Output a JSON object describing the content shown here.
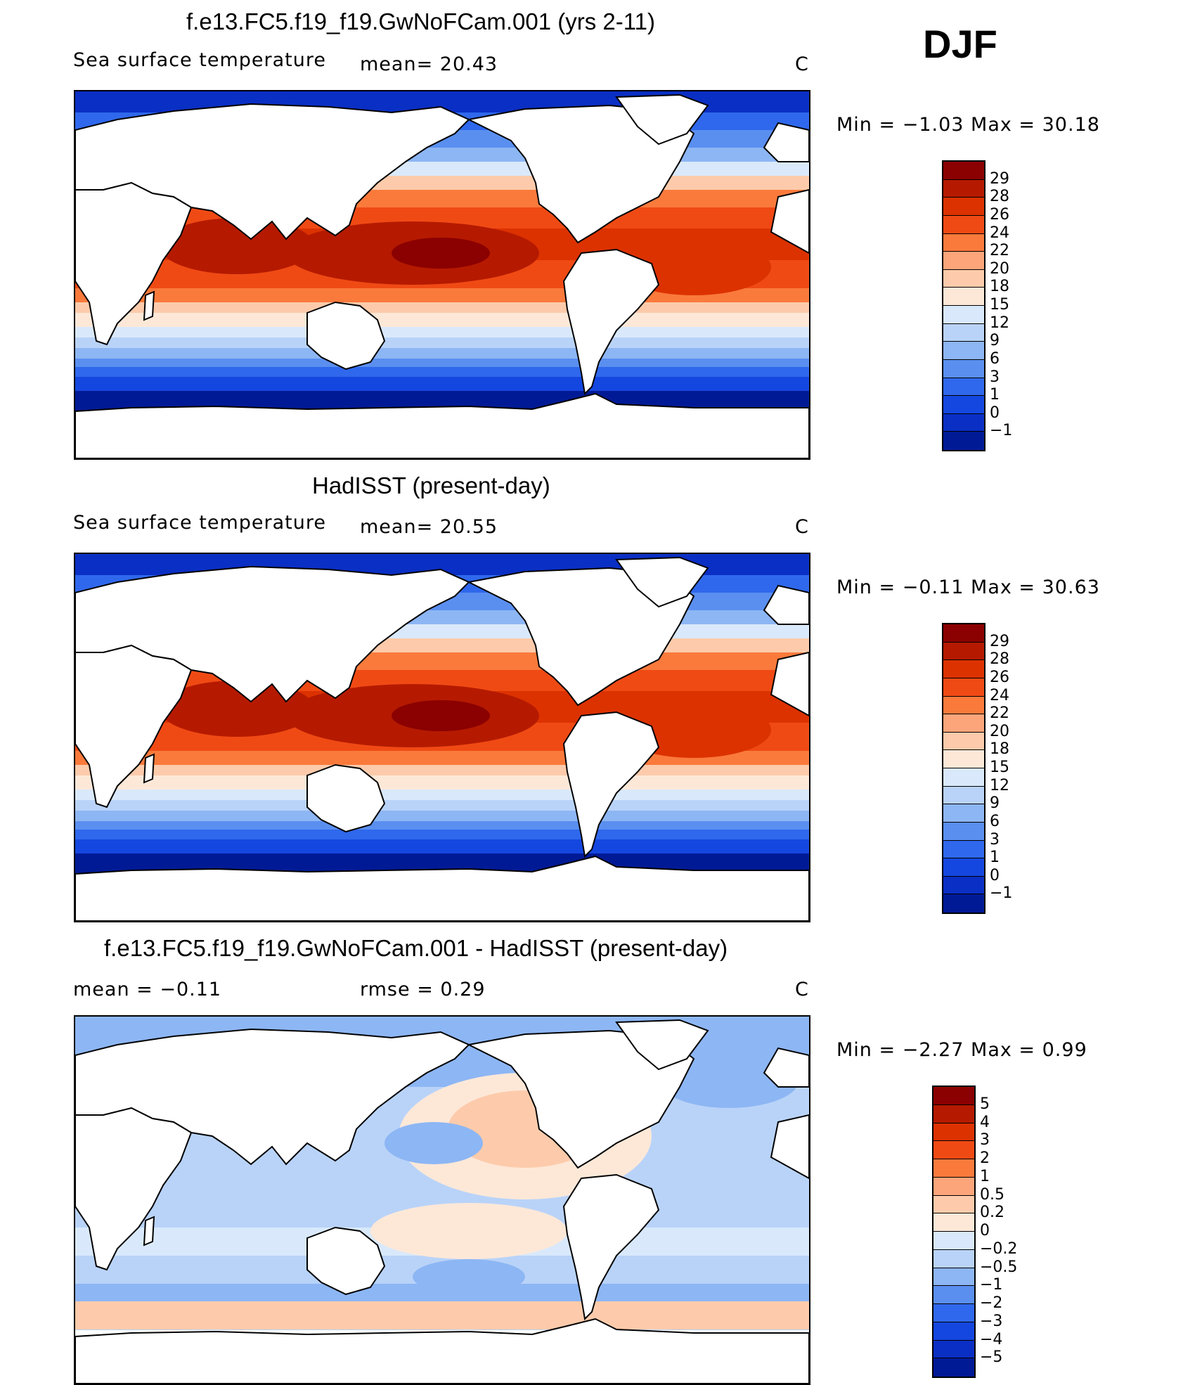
{
  "season": "DJF",
  "panels": [
    {
      "title": "f.e13.FC5.f19_f19.GwNoFCam.001 (yrs 2-11)",
      "left_label": "Sea surface temperature",
      "stat1": "mean=   20.43",
      "stat2": "",
      "units": "C",
      "minmax": "Min =   −1.03 Max =   30.18",
      "kind": "abs"
    },
    {
      "title": "HadISST (present-day)",
      "left_label": "Sea surface temperature",
      "stat1": "mean=   20.55",
      "stat2": "",
      "units": "C",
      "minmax": "Min =   −0.11 Max =   30.63",
      "kind": "abs2"
    },
    {
      "title": "f.e13.FC5.f19_f19.GwNoFCam.001 - HadISST (present-day)",
      "left_label": "mean =   −0.11",
      "stat1": "rmse =    0.29",
      "stat2": "",
      "units": "C",
      "minmax": "Min =   −2.27 Max =     0.99",
      "kind": "diff"
    }
  ],
  "colorbars": {
    "abs": {
      "labels": [
        "29",
        "28",
        "26",
        "24",
        "22",
        "20",
        "18",
        "15",
        "12",
        "9",
        "6",
        "3",
        "1",
        "0",
        "−1"
      ],
      "colors": [
        "#8b0000",
        "#b51a00",
        "#dc3200",
        "#f04a14",
        "#fa7a3c",
        "#fca57a",
        "#fdcbab",
        "#fde8d8",
        "#d9e9fb",
        "#b9d3f8",
        "#8db6f4",
        "#5a8ff0",
        "#2f68ec",
        "#1447e0",
        "#0a2fc4",
        "#001a96"
      ]
    },
    "diff": {
      "labels": [
        "5",
        "4",
        "3",
        "2",
        "1",
        "0.5",
        "0.2",
        "0",
        "−0.2",
        "−0.5",
        "−1",
        "−2",
        "−3",
        "−4",
        "−5"
      ],
      "colors": [
        "#8b0000",
        "#b51a00",
        "#dc3200",
        "#f04a14",
        "#fa7a3c",
        "#fca57a",
        "#fdcbab",
        "#fde8d8",
        "#d9e9fb",
        "#b9d3f8",
        "#8db6f4",
        "#5a8ff0",
        "#2f68ec",
        "#1447e0",
        "#0a2fc4",
        "#001a96"
      ]
    }
  }
}
